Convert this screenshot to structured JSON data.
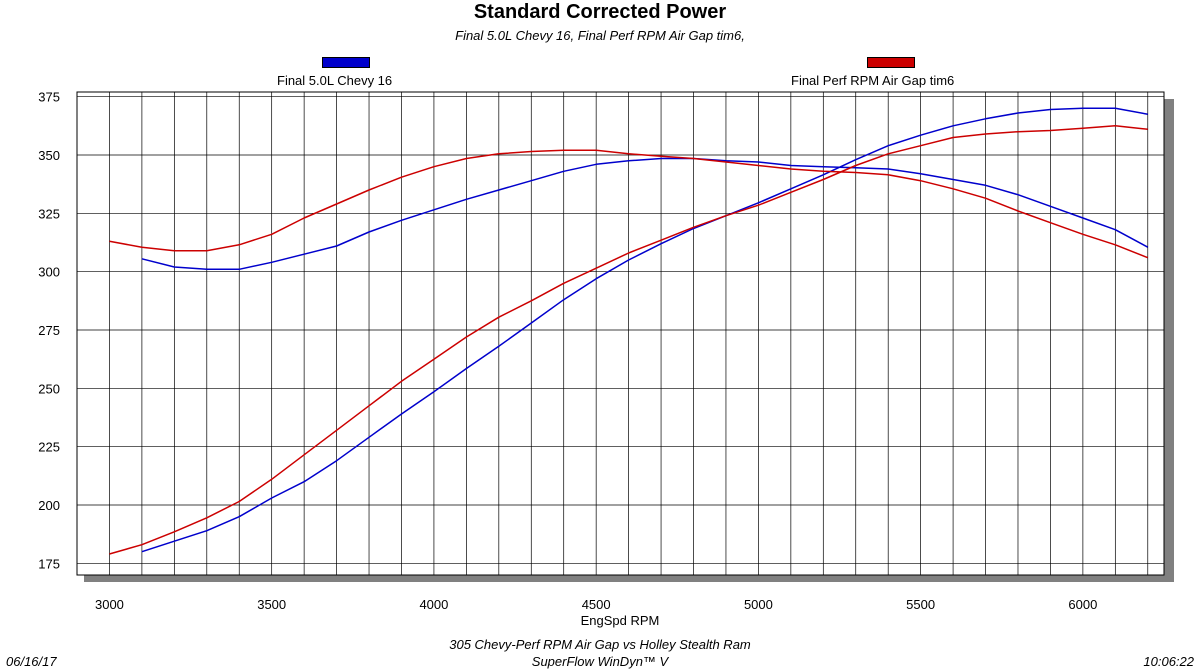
{
  "chart_data": {
    "type": "line",
    "title": "Standard Corrected Power",
    "subtitle": "Final 5.0L Chevy 16, Final Perf RPM Air Gap tim6,",
    "xlabel": "EngSpd RPM",
    "ylabel": "",
    "xlim": [
      2900,
      6250
    ],
    "ylim": [
      170,
      377
    ],
    "x_ticks": [
      3000,
      3500,
      4000,
      4500,
      5000,
      5500,
      6000
    ],
    "y_ticks": [
      175,
      200,
      225,
      250,
      275,
      300,
      325,
      350,
      375
    ],
    "grid": true,
    "legend_position": "top",
    "series": [
      {
        "name": "Final 5.0L Chevy 16",
        "color": "#0000cc",
        "curves": [
          {
            "x": [
              3100,
              3200,
              3300,
              3400,
              3500,
              3600,
              3700,
              3800,
              3900,
              4000,
              4100,
              4200,
              4300,
              4400,
              4500,
              4600,
              4700,
              4800,
              4900,
              5000,
              5100,
              5200,
              5300,
              5400,
              5500,
              5600,
              5700,
              5800,
              5900,
              6000,
              6100,
              6200
            ],
            "y": [
              305.5,
              302,
              301,
              301,
              304,
              307.5,
              311,
              317,
              322,
              326.5,
              331,
              335,
              339,
              343,
              346,
              347.5,
              348.5,
              348.5,
              347.5,
              347,
              345.5,
              345,
              344.5,
              344,
              342,
              339.5,
              337,
              333,
              328,
              323,
              318,
              310.5
            ]
          },
          {
            "x": [
              3100,
              3200,
              3300,
              3400,
              3500,
              3600,
              3700,
              3800,
              3900,
              4000,
              4100,
              4200,
              4300,
              4400,
              4500,
              4600,
              4700,
              4800,
              4900,
              5000,
              5100,
              5200,
              5300,
              5400,
              5500,
              5600,
              5700,
              5800,
              5900,
              6000,
              6100,
              6200
            ],
            "y": [
              180,
              184.5,
              189,
              195,
              203,
              210,
              219,
              229,
              239,
              248.5,
              258.5,
              268,
              278,
              288,
              297,
              305,
              312,
              318.5,
              324,
              329.5,
              335.5,
              341.5,
              348,
              354,
              358.5,
              362.5,
              365.5,
              368,
              369.5,
              370,
              370,
              367.5
            ]
          }
        ]
      },
      {
        "name": "Final Perf RPM Air Gap tim6",
        "color": "#cc0000",
        "curves": [
          {
            "x": [
              3000,
              3100,
              3200,
              3300,
              3400,
              3500,
              3600,
              3700,
              3800,
              3900,
              4000,
              4100,
              4200,
              4300,
              4400,
              4500,
              4600,
              4700,
              4800,
              4900,
              5000,
              5100,
              5200,
              5300,
              5400,
              5500,
              5600,
              5700,
              5800,
              5900,
              6000,
              6100,
              6200
            ],
            "y": [
              313,
              310.5,
              309,
              309,
              311.5,
              316,
              323,
              329,
              335,
              340.5,
              345,
              348.5,
              350.5,
              351.5,
              352,
              352,
              350.5,
              349.5,
              348.5,
              347,
              345.5,
              344,
              343,
              342.5,
              341.5,
              339,
              335.5,
              331.5,
              326,
              321,
              316,
              311.5,
              306
            ]
          },
          {
            "x": [
              3000,
              3100,
              3200,
              3300,
              3400,
              3500,
              3600,
              3700,
              3800,
              3900,
              4000,
              4100,
              4200,
              4300,
              4400,
              4500,
              4600,
              4700,
              4800,
              4900,
              5000,
              5100,
              5200,
              5300,
              5400,
              5500,
              5600,
              5700,
              5800,
              5900,
              6000,
              6100,
              6200
            ],
            "y": [
              179,
              183,
              188.5,
              194.5,
              201.5,
              211,
              221.5,
              232,
              242.5,
              253,
              262.5,
              272,
              280.5,
              287.5,
              295,
              301.5,
              308,
              313.5,
              319,
              324,
              328.5,
              334,
              339.5,
              345.5,
              350.5,
              354,
              357.5,
              359,
              360,
              360.5,
              361.5,
              362.5,
              361
            ]
          }
        ]
      }
    ]
  },
  "footer": {
    "description": "305 Chevy-Perf RPM Air Gap vs Holley Stealth Ram",
    "software": "SuperFlow WinDyn™ V",
    "date": "06/16/17",
    "time": "10:06:22"
  }
}
